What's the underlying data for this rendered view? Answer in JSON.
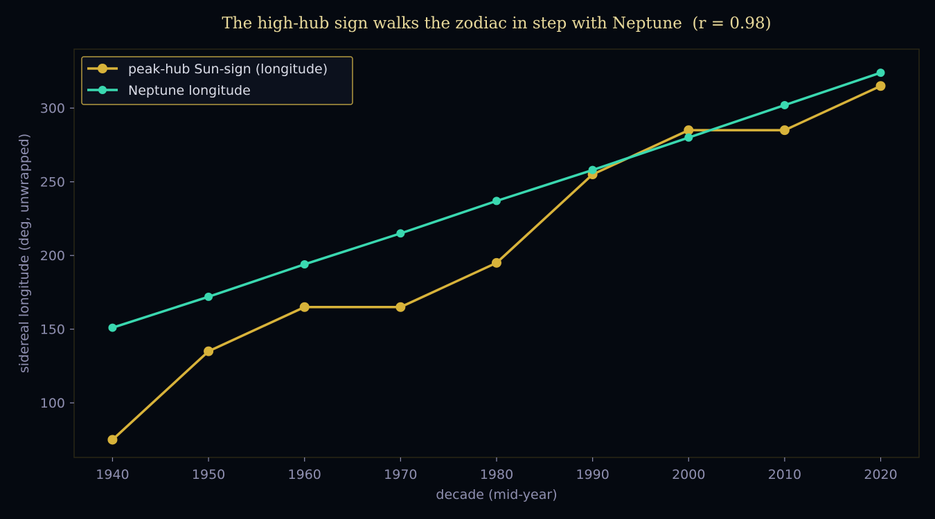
{
  "chart_data": {
    "type": "line",
    "title": "The high-hub sign walks the zodiac in step with Neptune  (r = 0.98)",
    "xlabel": "decade (mid-year)",
    "ylabel": "sidereal longitude (deg, unwrapped)",
    "x": [
      1940,
      1950,
      1960,
      1970,
      1980,
      1990,
      2000,
      2010,
      2020
    ],
    "x_ticks": [
      "1940",
      "1950",
      "1960",
      "1970",
      "1980",
      "1990",
      "2000",
      "2010",
      "2020"
    ],
    "y_ticks": [
      "100",
      "150",
      "200",
      "250",
      "300"
    ],
    "xlim": [
      1936,
      2024
    ],
    "ylim": [
      63,
      340
    ],
    "grid": false,
    "legend_position": "top-left",
    "series": [
      {
        "name": "peak-hub Sun-sign (longitude)",
        "color": "#d8b33a",
        "values": [
          75,
          135,
          165,
          165,
          195,
          255,
          285,
          285,
          315
        ]
      },
      {
        "name": "Neptune longitude",
        "color": "#3ad8b0",
        "values": [
          151,
          172,
          194,
          215,
          237,
          258,
          280,
          302,
          324
        ]
      }
    ],
    "colors": {
      "background": "#050910",
      "axes_frame": "#2a2716",
      "legend_border": "#b49a40",
      "legend_bg": "#0c111d"
    }
  }
}
